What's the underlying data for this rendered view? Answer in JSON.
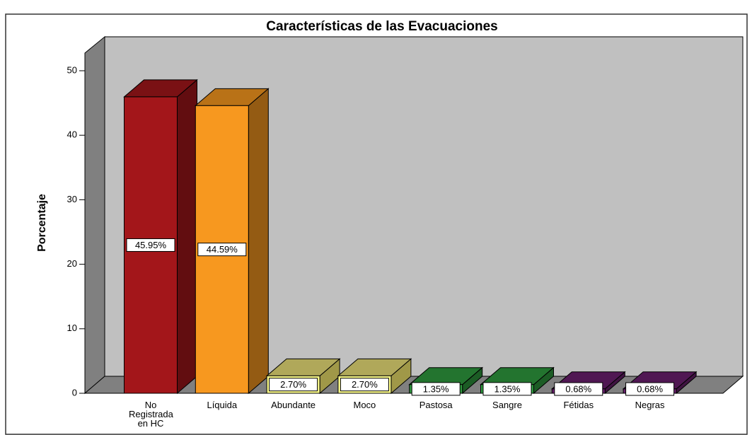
{
  "chart_data": {
    "type": "bar3d",
    "title": "Características de las Evacuaciones",
    "y_label": "Porcentaje",
    "categories": [
      "No Registrada en HC",
      "Líquida",
      "Abundante",
      "Moco",
      "Pastosa",
      "Sangre",
      "Fétidas",
      "Negras"
    ],
    "values": [
      45.95,
      44.59,
      2.7,
      2.7,
      1.35,
      1.35,
      0.68,
      0.68
    ],
    "value_labels": [
      "45.95%",
      "44.59%",
      "2.70%",
      "2.70%",
      "1.35%",
      "1.35%",
      "0.68%",
      "0.68%"
    ],
    "colors": [
      "#a3161a",
      "#f7981f",
      "#ffff8c",
      "#ffff8c",
      "#2e9a3e",
      "#2e9a3e",
      "#6a1f6e",
      "#6a1f6e"
    ],
    "ylim": [
      0,
      52.7
    ],
    "yticks": [
      0,
      10,
      20,
      30,
      40,
      50
    ]
  }
}
